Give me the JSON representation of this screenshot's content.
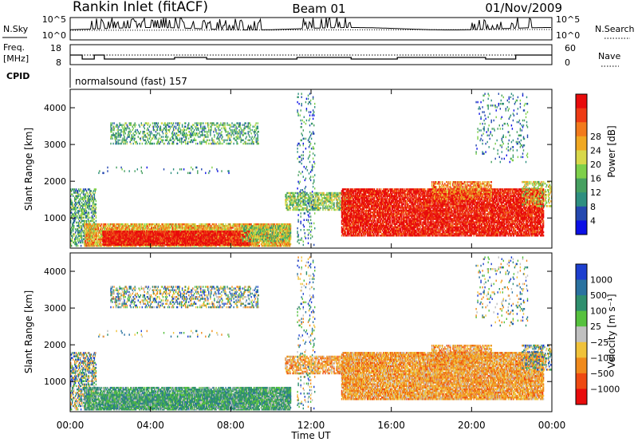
{
  "header": {
    "station": "Rankin Inlet (fitACF)",
    "beam": "Beam 01",
    "date": "01/Nov/2009"
  },
  "sky_panel": {
    "label": "N.Sky",
    "right_label": "N.Search",
    "y_ticks": [
      "10^5",
      "10^0"
    ],
    "right_ticks": [
      "10^5",
      "10^0"
    ]
  },
  "freq_panel": {
    "label_line1": "Freq.",
    "label_line2": "[MHz]",
    "y_ticks": [
      "18",
      "8"
    ],
    "right_ticks": [
      "60",
      "0"
    ],
    "right_label": "Nave"
  },
  "cpid": {
    "label": "CPID",
    "value": "normalsound (fast) 157"
  },
  "chart_data": [
    {
      "type": "heatmap",
      "name": "power",
      "ylabel": "Slant Range [km]",
      "yticks": [
        1000,
        2000,
        3000,
        4000
      ],
      "ylim": [
        180,
        4500
      ],
      "xlim": [
        0,
        24
      ],
      "colorbar": {
        "label": "Power [dB]",
        "ticks": [
          "4",
          "8",
          "12",
          "16",
          "20",
          "24",
          "28"
        ],
        "colors": [
          "#0b10e6",
          "#2448b0",
          "#2e8f80",
          "#46a060",
          "#7ed04a",
          "#d8d84a",
          "#f0a822",
          "#f27a1c",
          "#ee3b14",
          "#e80c0c"
        ]
      }
    },
    {
      "type": "heatmap",
      "name": "velocity",
      "ylabel": "Slant Range [km]",
      "yticks": [
        1000,
        2000,
        3000,
        4000
      ],
      "ylim": [
        180,
        4500
      ],
      "xlim": [
        0,
        24
      ],
      "xlabel": "Time UT",
      "xticks": [
        "00:00",
        "04:00",
        "08:00",
        "12:00",
        "16:00",
        "20:00",
        "00:00"
      ],
      "colorbar": {
        "label": "Velocity [m s⁻¹]",
        "ticks": [
          "1000",
          "500",
          "100",
          "25",
          "−25",
          "−100",
          "−500",
          "−1000"
        ],
        "colors": [
          "#1d3fcf",
          "#2a72a0",
          "#2f8f6e",
          "#56c13e",
          "#c0c0c0",
          "#f0c23a",
          "#f08a1c",
          "#ef4a12",
          "#e80c0c"
        ]
      }
    }
  ]
}
